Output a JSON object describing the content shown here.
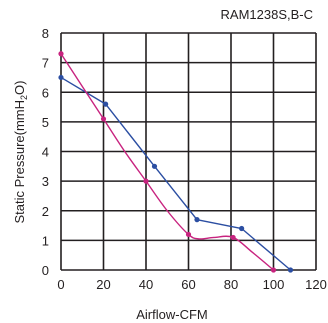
{
  "chart_data": {
    "type": "line",
    "title": "RAM1238S,B-C",
    "xlabel": "Airflow-CFM",
    "ylabel": {
      "prefix": "Static Pressure(mmH",
      "sub": "2",
      "suffix": "O)"
    },
    "xlim": [
      0,
      120
    ],
    "ylim": [
      0,
      8
    ],
    "xticks": [
      0,
      20,
      40,
      60,
      80,
      100,
      120
    ],
    "yticks": [
      0,
      1,
      2,
      3,
      4,
      5,
      6,
      7,
      8
    ],
    "grid": true,
    "series": [
      {
        "color": "#2b4ea2",
        "smooth": false,
        "points": [
          [
            0,
            6.5
          ],
          [
            21,
            5.6
          ],
          [
            44,
            3.5
          ],
          [
            64,
            1.7
          ],
          [
            85,
            1.4
          ],
          [
            108,
            0
          ]
        ],
        "markers": [
          [
            0,
            6.5
          ],
          [
            21,
            5.6
          ],
          [
            44,
            3.5
          ],
          [
            64,
            1.7
          ],
          [
            85,
            1.4
          ],
          [
            108,
            0
          ]
        ]
      },
      {
        "color": "#c8237f",
        "smooth": true,
        "points": [
          [
            0,
            7.3
          ],
          [
            10,
            6.2
          ],
          [
            20,
            5.1
          ],
          [
            30,
            4.0
          ],
          [
            40,
            3.0
          ],
          [
            50,
            2.0
          ],
          [
            60,
            1.2
          ],
          [
            65,
            1.05
          ],
          [
            72,
            1.1
          ],
          [
            81,
            1.1
          ],
          [
            90,
            0.6
          ],
          [
            100,
            0
          ]
        ],
        "markers": [
          [
            0,
            7.3
          ],
          [
            20,
            5.1
          ],
          [
            40,
            3.0
          ],
          [
            60,
            1.2
          ],
          [
            81,
            1.1
          ],
          [
            100,
            0
          ]
        ]
      }
    ]
  }
}
